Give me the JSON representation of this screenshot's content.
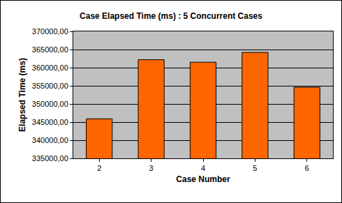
{
  "chart_data": {
    "type": "bar",
    "title": "Case Elapsed Time (ms) : 5 Concurrent Cases",
    "x_label": "Case Number",
    "y_label": "Elapsed Time (ms)",
    "categories": [
      "2",
      "3",
      "4",
      "5",
      "6"
    ],
    "values": [
      345900,
      362200,
      361500,
      364200,
      354600
    ],
    "color": "#ff6600",
    "ylim": [
      335000,
      370000
    ],
    "yticks": [
      {
        "value": 335000,
        "label": "335000,00"
      },
      {
        "value": 340000,
        "label": "340000,00"
      },
      {
        "value": 345000,
        "label": "345000,00"
      },
      {
        "value": 350000,
        "label": "350000,00"
      },
      {
        "value": 355000,
        "label": "355000,00"
      },
      {
        "value": 360000,
        "label": "360000,00"
      },
      {
        "value": 365000,
        "label": "365000,00"
      },
      {
        "value": 370000,
        "label": "370000,00"
      }
    ],
    "grid": true
  }
}
